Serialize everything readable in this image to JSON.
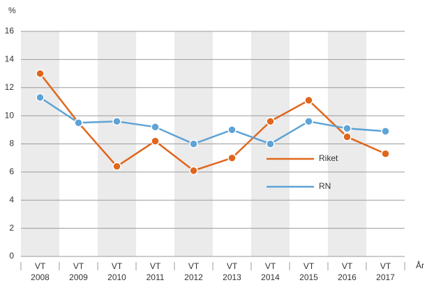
{
  "chart_data": {
    "type": "line",
    "y_label": "%",
    "x_label": "År",
    "categories": [
      "VT 2008",
      "VT 2009",
      "VT 2010",
      "VT 2011",
      "VT 2012",
      "VT 2013",
      "VT 2014",
      "VT 2015",
      "VT 2016",
      "VT 2017"
    ],
    "series": [
      {
        "name": "Riket",
        "color": "#e0661c",
        "values": [
          13.0,
          9.5,
          6.4,
          8.2,
          6.1,
          7.0,
          9.6,
          11.1,
          8.5,
          7.3
        ]
      },
      {
        "name": "RN",
        "color": "#5ea3d6",
        "values": [
          11.3,
          9.5,
          9.6,
          9.2,
          8.0,
          9.0,
          8.0,
          9.6,
          9.1,
          8.9
        ]
      }
    ],
    "ylim": [
      0,
      16
    ],
    "yticks": [
      0,
      2,
      4,
      6,
      8,
      10,
      12,
      14,
      16
    ],
    "grid": true
  }
}
